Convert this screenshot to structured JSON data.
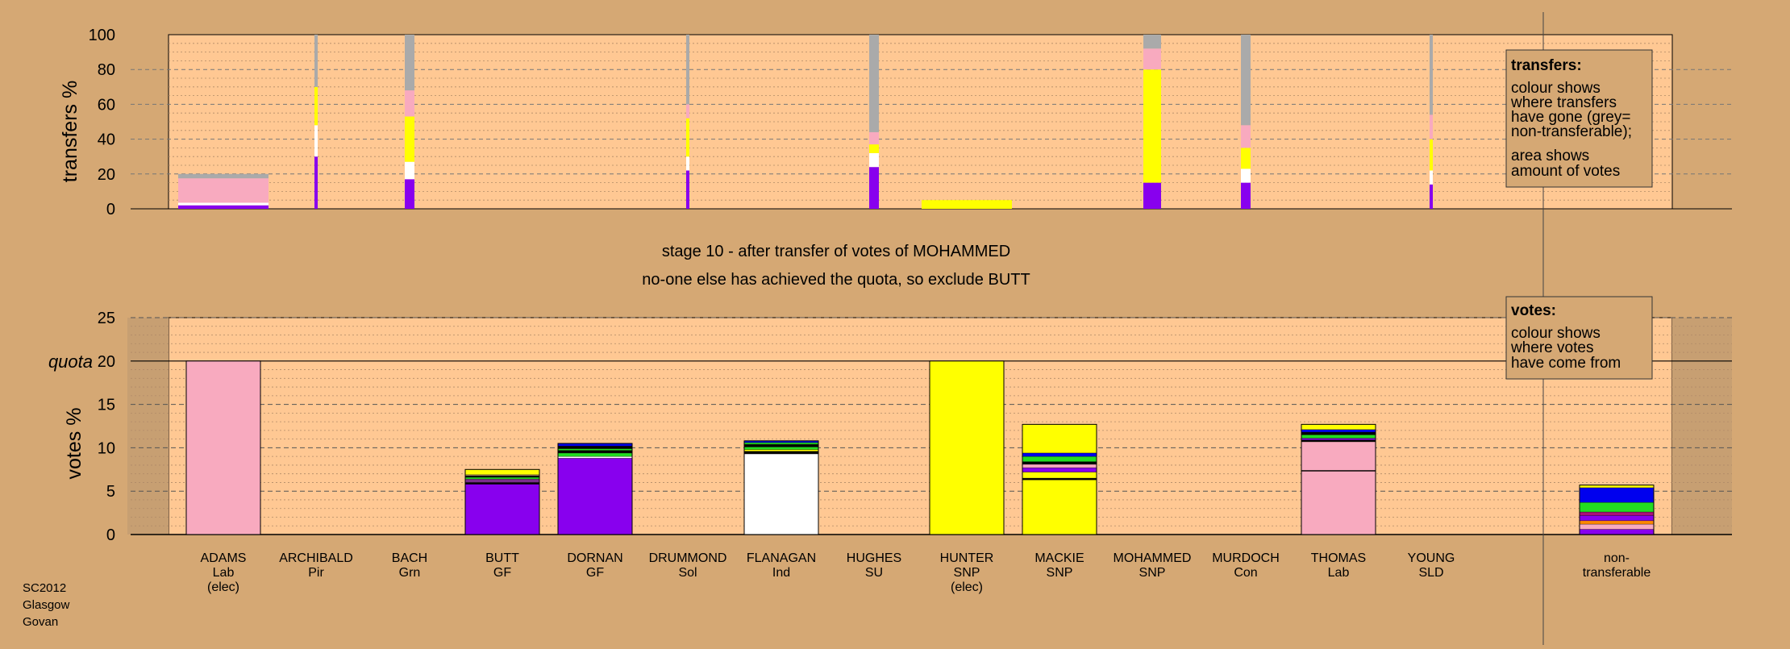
{
  "chart_data": [
    {
      "type": "bar",
      "name": "transfers",
      "ylabel": "transfers %",
      "ylim": [
        0,
        100
      ],
      "yticks": [
        0,
        20,
        40,
        60,
        80,
        100
      ],
      "categories": [
        "ADAMS",
        "ARCHIBALD",
        "BACH",
        "BUTT",
        "DORNAN",
        "DRUMMOND",
        "FLANAGAN",
        "HUGHES",
        "HUNTER",
        "MACKIE",
        "MOHAMMED",
        "MURDOCH",
        "THOMAS",
        "YOUNG"
      ],
      "colors_legend": {
        "pink": "#f8aabf",
        "yellow": "#ffff00",
        "purple": "#8800ee",
        "white": "#ffffff",
        "grey": "#aaaaaa"
      },
      "bars": [
        {
          "candidate": "ADAMS",
          "width": "wide",
          "segments": [
            {
              "color": "#8800ee",
              "value": 2
            },
            {
              "color": "#ffffff",
              "value": 1.5
            },
            {
              "color": "#f8aabf",
              "value": 14
            },
            {
              "color": "#aaaaaa",
              "value": 2.5
            }
          ]
        },
        {
          "candidate": "ARCHIBALD",
          "width": "thin",
          "segments": [
            {
              "color": "#8800ee",
              "value": 30
            },
            {
              "color": "#ffffff",
              "value": 18
            },
            {
              "color": "#ffff00",
              "value": 22
            },
            {
              "color": "#aaaaaa",
              "value": 30
            }
          ]
        },
        {
          "candidate": "BACH",
          "width": "narrow",
          "segments": [
            {
              "color": "#8800ee",
              "value": 17
            },
            {
              "color": "#ffffff",
              "value": 10
            },
            {
              "color": "#ffff00",
              "value": 26
            },
            {
              "color": "#f8aabf",
              "value": 15
            },
            {
              "color": "#aaaaaa",
              "value": 32
            }
          ]
        },
        {
          "candidate": "DRUMMOND",
          "width": "thin",
          "segments": [
            {
              "color": "#8800ee",
              "value": 22
            },
            {
              "color": "#ffffff",
              "value": 8
            },
            {
              "color": "#ffff00",
              "value": 22
            },
            {
              "color": "#f8aabf",
              "value": 8
            },
            {
              "color": "#aaaaaa",
              "value": 40
            }
          ]
        },
        {
          "candidate": "HUGHES",
          "width": "narrow",
          "segments": [
            {
              "color": "#8800ee",
              "value": 24
            },
            {
              "color": "#ffffff",
              "value": 8
            },
            {
              "color": "#ffff00",
              "value": 5
            },
            {
              "color": "#f8aabf",
              "value": 7
            },
            {
              "color": "#aaaaaa",
              "value": 56
            }
          ]
        },
        {
          "candidate": "HUNTER",
          "width": "wide",
          "segments": [
            {
              "color": "#ffff00",
              "value": 5
            }
          ]
        },
        {
          "candidate": "MOHAMMED",
          "width": "medium",
          "segments": [
            {
              "color": "#8800ee",
              "value": 15
            },
            {
              "color": "#ffff00",
              "value": 65
            },
            {
              "color": "#f8aabf",
              "value": 12
            },
            {
              "color": "#aaaaaa",
              "value": 8
            }
          ]
        },
        {
          "candidate": "MURDOCH",
          "width": "narrow",
          "segments": [
            {
              "color": "#8800ee",
              "value": 15
            },
            {
              "color": "#ffffff",
              "value": 8
            },
            {
              "color": "#ffff00",
              "value": 12
            },
            {
              "color": "#f8aabf",
              "value": 13
            },
            {
              "color": "#aaaaaa",
              "value": 52
            }
          ]
        },
        {
          "candidate": "YOUNG",
          "width": "thin",
          "segments": [
            {
              "color": "#8800ee",
              "value": 14
            },
            {
              "color": "#ffffff",
              "value": 8
            },
            {
              "color": "#ffff00",
              "value": 18
            },
            {
              "color": "#f8aabf",
              "value": 14
            },
            {
              "color": "#aaaaaa",
              "value": 46
            }
          ]
        }
      ],
      "legend": {
        "title": "transfers:",
        "lines": [
          "colour shows",
          "where transfers",
          "have gone (grey=",
          "non-transferable);",
          "area shows",
          "amount of votes"
        ]
      }
    },
    {
      "type": "bar",
      "name": "votes",
      "ylabel": "votes %",
      "ylim": [
        0,
        25
      ],
      "yticks": [
        0,
        5,
        10,
        15,
        20,
        25
      ],
      "quota": {
        "label": "quota",
        "value": 20
      },
      "categories": [
        {
          "name": "ADAMS",
          "party": "Lab",
          "note": "(elec)"
        },
        {
          "name": "ARCHIBALD",
          "party": "Pir",
          "note": ""
        },
        {
          "name": "BACH",
          "party": "Grn",
          "note": ""
        },
        {
          "name": "BUTT",
          "party": "GF",
          "note": ""
        },
        {
          "name": "DORNAN",
          "party": "GF",
          "note": ""
        },
        {
          "name": "DRUMMOND",
          "party": "Sol",
          "note": ""
        },
        {
          "name": "FLANAGAN",
          "party": "Ind",
          "note": ""
        },
        {
          "name": "HUGHES",
          "party": "SU",
          "note": ""
        },
        {
          "name": "HUNTER",
          "party": "SNP",
          "note": "(elec)"
        },
        {
          "name": "MACKIE",
          "party": "SNP",
          "note": ""
        },
        {
          "name": "MOHAMMED",
          "party": "SNP",
          "note": ""
        },
        {
          "name": "MURDOCH",
          "party": "Con",
          "note": ""
        },
        {
          "name": "THOMAS",
          "party": "Lab",
          "note": ""
        },
        {
          "name": "YOUNG",
          "party": "SLD",
          "note": ""
        }
      ],
      "extra_category": {
        "line1": "non-",
        "line2": "transferable"
      },
      "stacks": [
        {
          "candidate": "ADAMS",
          "segments": [
            {
              "color": "#f8aabf",
              "value": 20
            }
          ]
        },
        {
          "candidate": "BUTT",
          "segments": [
            {
              "color": "#8800ee",
              "value": 5.8
            },
            {
              "color": "#000000",
              "value": 0.2
            },
            {
              "color": "#7b2d8b",
              "value": 0.4
            },
            {
              "color": "#22dd22",
              "value": 0.2
            },
            {
              "color": "#000000",
              "value": 0.2
            },
            {
              "color": "#ffcc99",
              "value": 0.1
            },
            {
              "color": "#ffff00",
              "value": 0.6
            }
          ]
        },
        {
          "candidate": "DORNAN",
          "segments": [
            {
              "color": "#8800ee",
              "value": 8.8
            },
            {
              "color": "#ffffff",
              "value": 0.2
            },
            {
              "color": "#22dd22",
              "value": 0.4
            },
            {
              "color": "#000000",
              "value": 0.3
            },
            {
              "color": "#22dd22",
              "value": 0.2
            },
            {
              "color": "#000000",
              "value": 0.3
            },
            {
              "color": "#0000ee",
              "value": 0.3
            }
          ]
        },
        {
          "candidate": "FLANAGAN",
          "segments": [
            {
              "color": "#ffffff",
              "value": 9.3
            },
            {
              "color": "#000000",
              "value": 0.3
            },
            {
              "color": "#ffff00",
              "value": 0.2
            },
            {
              "color": "#22dd22",
              "value": 0.3
            },
            {
              "color": "#000000",
              "value": 0.3
            },
            {
              "color": "#22dd22",
              "value": 0.2
            },
            {
              "color": "#0000ee",
              "value": 0.2
            }
          ]
        },
        {
          "candidate": "HUNTER",
          "segments": [
            {
              "color": "#ffff00",
              "value": 20
            }
          ]
        },
        {
          "candidate": "MACKIE",
          "segments": [
            {
              "color": "#ffff00",
              "value": 6.3
            },
            {
              "color": "#000000",
              "value": 0.2
            },
            {
              "color": "#ffff00",
              "value": 0.7
            },
            {
              "color": "#8800ee",
              "value": 0.5
            },
            {
              "color": "#f8aabf",
              "value": 0.4
            },
            {
              "color": "#000000",
              "value": 0.3
            },
            {
              "color": "#22dd22",
              "value": 0.6
            },
            {
              "color": "#0000ee",
              "value": 0.4
            },
            {
              "color": "#ffff00",
              "value": 3.3
            }
          ]
        },
        {
          "candidate": "THOMAS",
          "segments": [
            {
              "color": "#f8aabf",
              "value": 7.3
            },
            {
              "color": "#000000",
              "value": 0.1
            },
            {
              "color": "#f8aabf",
              "value": 3.3
            },
            {
              "color": "#000000",
              "value": 0.2
            },
            {
              "color": "#8800ee",
              "value": 0.2
            },
            {
              "color": "#22dd22",
              "value": 0.4
            },
            {
              "color": "#000000",
              "value": 0.3
            },
            {
              "color": "#0000ee",
              "value": 0.3
            },
            {
              "color": "#ffff00",
              "value": 0.6
            }
          ]
        },
        {
          "candidate": "non-transferable",
          "segments": [
            {
              "color": "#8800ee",
              "value": 0.6
            },
            {
              "color": "#f8aabf",
              "value": 0.6
            },
            {
              "color": "#ff8800",
              "value": 0.4
            },
            {
              "color": "#8800ee",
              "value": 0.6
            },
            {
              "color": "#aa1177",
              "value": 0.4
            },
            {
              "color": "#22dd22",
              "value": 1.1
            },
            {
              "color": "#0000ee",
              "value": 1.7
            },
            {
              "color": "#ffff00",
              "value": 0.3
            }
          ]
        }
      ],
      "legend": {
        "title": "votes:",
        "lines": [
          "colour shows",
          "where votes",
          "have come from"
        ]
      }
    }
  ],
  "stage_title": "stage 10 - after transfer of votes of MOHAMMED",
  "stage_subtitle": "no-one else has achieved the quota, so exclude BUTT",
  "footer": [
    "SC2012",
    "Glasgow",
    "Govan"
  ]
}
